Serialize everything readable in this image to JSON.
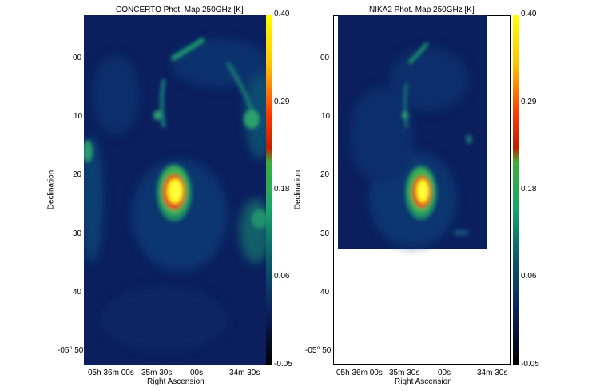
{
  "figure": {
    "left": {
      "title": "CONCERTO Phot. Map 250GHz [K]",
      "ylabel": "Declination",
      "xlabel": "Right Ascension",
      "y_ticks": [
        "00",
        "10",
        "20",
        "30",
        "40",
        "-05° 50'"
      ],
      "x_ticks": [
        "05h 36m 00s",
        "35m 30s",
        "00s",
        "34m 30s"
      ],
      "colorbar_ticks": [
        "0.40",
        "0.29",
        "0.18",
        "0.06",
        "-0.05"
      ]
    },
    "right": {
      "title": "NIKA2 Phot. Map 250GHz [K]",
      "ylabel": "Declination",
      "xlabel": "Right Ascension",
      "y_ticks": [
        "00",
        "10",
        "20",
        "30",
        "40",
        "-05° 50'"
      ],
      "x_ticks": [
        "05h 36m 00s",
        "35m 30s",
        "00s",
        "34m 30s"
      ],
      "colorbar_ticks": [
        "0.40",
        "0.29",
        "0.18",
        "0.06",
        "-0.05"
      ]
    },
    "colormap": [
      "#000000",
      "#0b1f5e",
      "#0c5a6a",
      "#1aa56b",
      "#4fc14a",
      "#c8d200",
      "#ff3b00",
      "#ffff00"
    ]
  }
}
